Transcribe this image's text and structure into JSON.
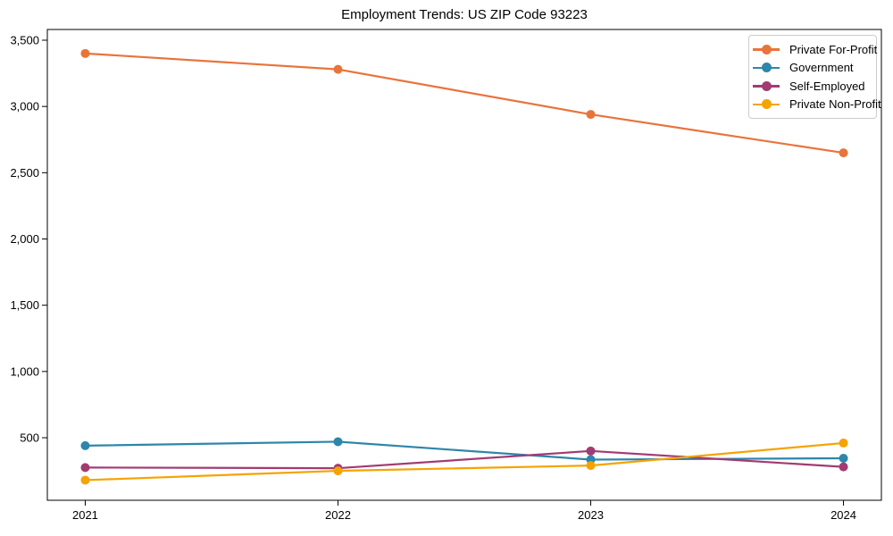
{
  "chart_data": {
    "type": "line",
    "title": "Employment Trends: US ZIP Code 93223",
    "xlabel": "",
    "ylabel": "",
    "x": [
      2021,
      2022,
      2023,
      2024
    ],
    "xticklabels": [
      "2021",
      "2022",
      "2023",
      "2024"
    ],
    "yticks": [
      500,
      1000,
      1500,
      2000,
      2500,
      3000,
      3500
    ],
    "ytick_labels": [
      "500",
      "1,000",
      "1,500",
      "2,000",
      "2,500",
      "3,000",
      "3,500"
    ],
    "xlim": [
      2020.85,
      2024.15
    ],
    "ylim": [
      28,
      3581
    ],
    "grid": false,
    "legend_position": "upper right",
    "series": [
      {
        "name": "Private For-Profit",
        "color": "#E8743B",
        "values": [
          3400,
          3280,
          2940,
          2650
        ]
      },
      {
        "name": "Government",
        "color": "#2E86AB",
        "values": [
          440,
          470,
          335,
          345
        ]
      },
      {
        "name": "Self-Employed",
        "color": "#A23B72",
        "values": [
          275,
          270,
          400,
          280
        ]
      },
      {
        "name": "Private Non-Profit",
        "color": "#F5A301",
        "values": [
          180,
          250,
          290,
          460
        ]
      }
    ]
  }
}
